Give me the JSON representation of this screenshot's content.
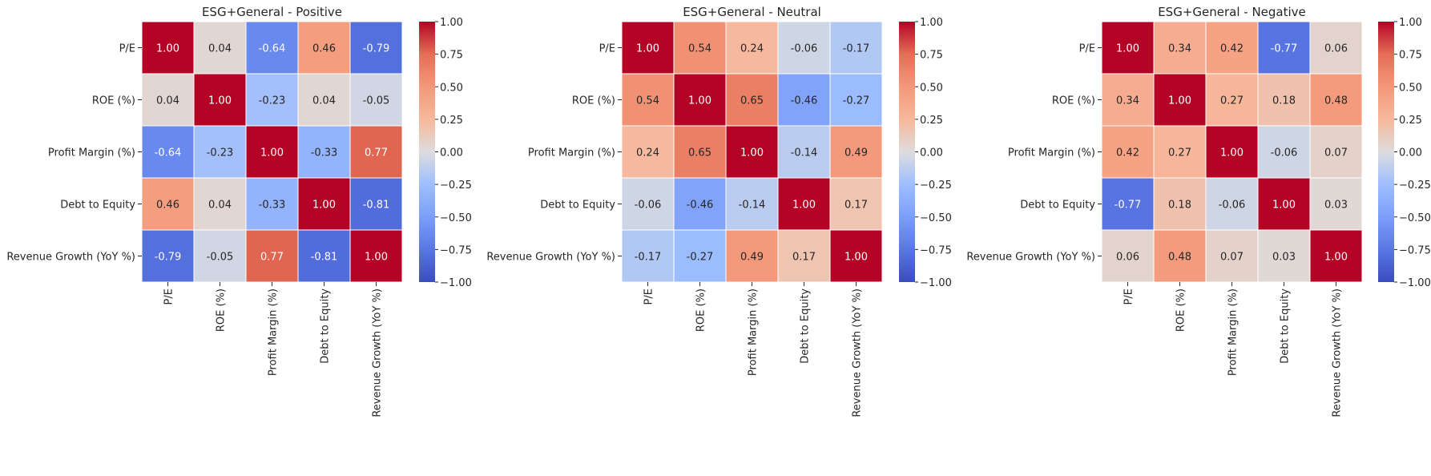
{
  "chart_data": [
    {
      "type": "heatmap",
      "title": "ESG+General - Positive",
      "row_labels": [
        "P/E",
        "ROE (%)",
        "Profit Margin (%)",
        "Debt to Equity",
        "Revenue Growth (YoY %)"
      ],
      "col_labels": [
        "P/E",
        "ROE (%)",
        "Profit Margin (%)",
        "Debt to Equity",
        "Revenue Growth (YoY %)"
      ],
      "values": [
        [
          1.0,
          0.04,
          -0.64,
          0.46,
          -0.79
        ],
        [
          0.04,
          1.0,
          -0.23,
          0.04,
          -0.05
        ],
        [
          -0.64,
          -0.23,
          1.0,
          -0.33,
          0.77
        ],
        [
          0.46,
          0.04,
          -0.33,
          1.0,
          -0.81
        ],
        [
          -0.79,
          -0.05,
          0.77,
          -0.81,
          1.0
        ]
      ],
      "vmin": -1.0,
      "vmax": 1.0,
      "colormap": "coolwarm",
      "colorbar_ticks": [
        "1.00",
        "0.75",
        "0.50",
        "0.25",
        "0.00",
        "−0.25",
        "−0.50",
        "−0.75",
        "−1.00"
      ],
      "annotation_format": "0.00"
    },
    {
      "type": "heatmap",
      "title": "ESG+General - Neutral",
      "row_labels": [
        "P/E",
        "ROE (%)",
        "Profit Margin (%)",
        "Debt to Equity",
        "Revenue Growth (YoY %)"
      ],
      "col_labels": [
        "P/E",
        "ROE (%)",
        "Profit Margin (%)",
        "Debt to Equity",
        "Revenue Growth (YoY %)"
      ],
      "values": [
        [
          1.0,
          0.54,
          0.24,
          -0.06,
          -0.17
        ],
        [
          0.54,
          1.0,
          0.65,
          -0.46,
          -0.27
        ],
        [
          0.24,
          0.65,
          1.0,
          -0.14,
          0.49
        ],
        [
          -0.06,
          -0.46,
          -0.14,
          1.0,
          0.17
        ],
        [
          -0.17,
          -0.27,
          0.49,
          0.17,
          1.0
        ]
      ],
      "vmin": -1.0,
      "vmax": 1.0,
      "colormap": "coolwarm",
      "colorbar_ticks": [
        "1.00",
        "0.75",
        "0.50",
        "0.25",
        "0.00",
        "−0.25",
        "−0.50",
        "−0.75",
        "−1.00"
      ],
      "annotation_format": "0.00"
    },
    {
      "type": "heatmap",
      "title": "ESG+General - Negative",
      "row_labels": [
        "P/E",
        "ROE (%)",
        "Profit Margin (%)",
        "Debt to Equity",
        "Revenue Growth (YoY %)"
      ],
      "col_labels": [
        "P/E",
        "ROE (%)",
        "Profit Margin (%)",
        "Debt to Equity",
        "Revenue Growth (YoY %)"
      ],
      "values": [
        [
          1.0,
          0.34,
          0.42,
          -0.77,
          0.06
        ],
        [
          0.34,
          1.0,
          0.27,
          0.18,
          0.48
        ],
        [
          0.42,
          0.27,
          1.0,
          -0.06,
          0.07
        ],
        [
          -0.77,
          0.18,
          -0.06,
          1.0,
          0.03
        ],
        [
          0.06,
          0.48,
          0.07,
          0.03,
          1.0
        ]
      ],
      "vmin": -1.0,
      "vmax": 1.0,
      "colormap": "coolwarm",
      "colorbar_ticks": [
        "1.00",
        "0.75",
        "0.50",
        "0.25",
        "0.00",
        "−0.25",
        "−0.50",
        "−0.75",
        "−1.00"
      ],
      "annotation_format": "0.00"
    }
  ]
}
